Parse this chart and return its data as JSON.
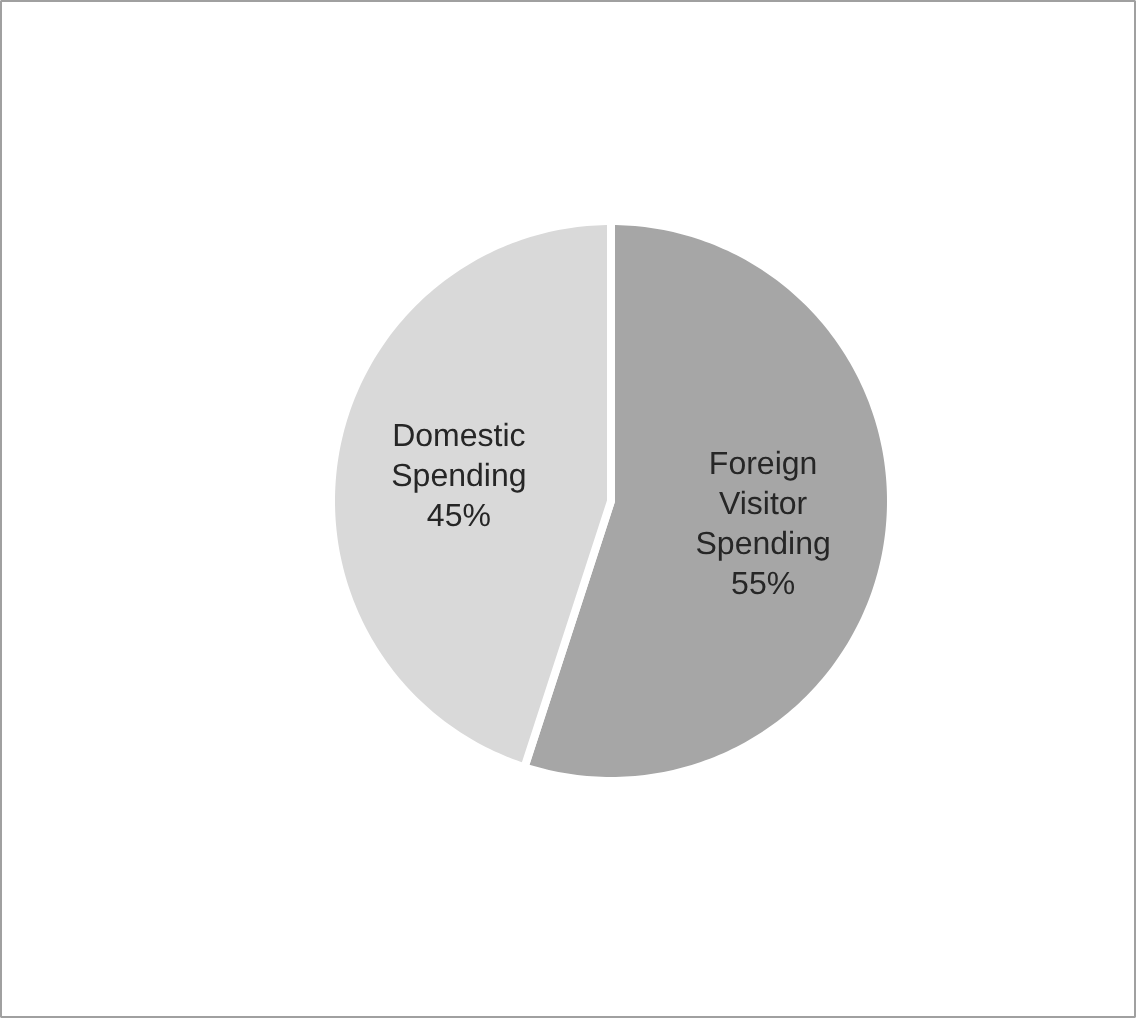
{
  "chart_data": {
    "type": "pie",
    "categories": [
      "Foreign Visitor Spending",
      "Domestic Spending"
    ],
    "values": [
      55,
      45
    ],
    "colors": [
      "#a6a6a6",
      "#d9d9d9"
    ],
    "value_labels": [
      "55%",
      "45%"
    ]
  }
}
